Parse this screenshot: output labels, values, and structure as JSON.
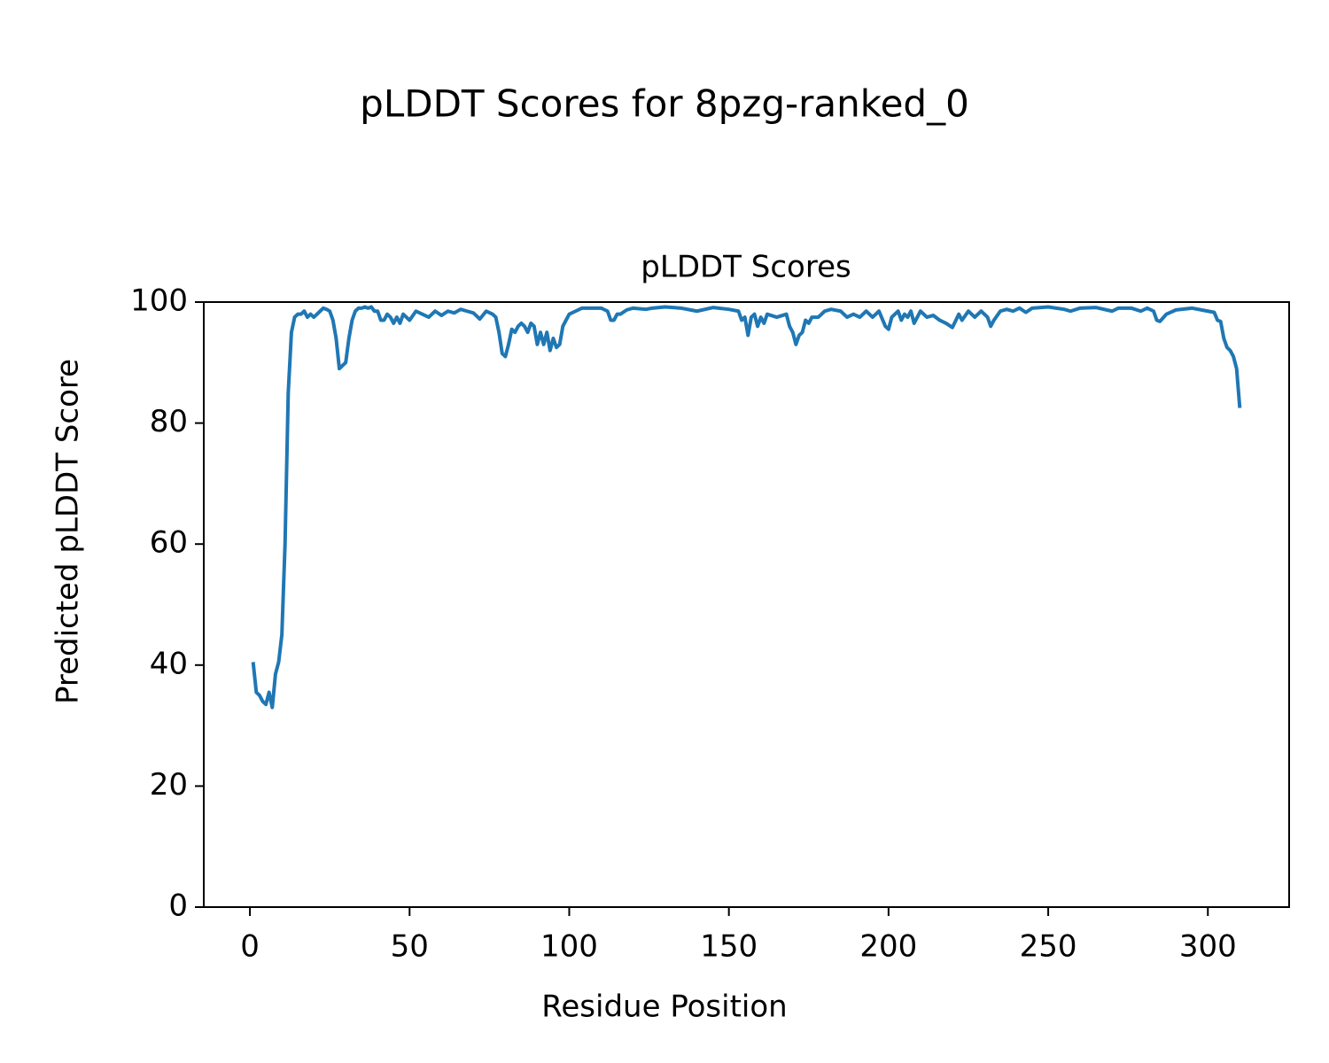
{
  "chart_data": {
    "type": "line",
    "suptitle": "pLDDT Scores for 8pzg-ranked_0",
    "title": "pLDDT Scores",
    "x_label": "Residue Position",
    "y_label": "Predicted pLDDT Score",
    "xlim": [
      -14.45,
      325.45
    ],
    "xticks": [
      0,
      50,
      100,
      150,
      200,
      250,
      300
    ],
    "ylim": [
      0,
      100
    ],
    "yticks": [
      0,
      20,
      40,
      60,
      80,
      100
    ],
    "grid": false,
    "x": [
      1,
      2,
      3,
      4,
      5,
      6,
      7,
      8,
      9,
      10,
      11,
      12,
      13,
      14,
      15,
      16,
      17,
      18,
      19,
      20,
      21,
      22,
      23,
      24,
      25,
      26,
      27,
      28,
      29,
      30,
      31,
      32,
      33,
      34,
      35,
      36,
      37,
      38,
      39,
      40,
      41,
      42,
      43,
      44,
      45,
      46,
      47,
      48,
      49,
      50,
      52,
      54,
      56,
      58,
      60,
      62,
      64,
      66,
      68,
      70,
      72,
      74,
      76,
      77,
      78,
      79,
      80,
      81,
      82,
      83,
      84,
      85,
      86,
      87,
      88,
      89,
      90,
      91,
      92,
      93,
      94,
      95,
      96,
      97,
      98,
      99,
      100,
      102,
      104,
      106,
      108,
      110,
      112,
      113,
      114,
      115,
      116,
      118,
      120,
      124,
      126,
      130,
      135,
      140,
      145,
      150,
      153,
      154,
      155,
      156,
      157,
      158,
      159,
      160,
      161,
      162,
      165,
      168,
      169,
      170,
      171,
      172,
      173,
      174,
      175,
      176,
      178,
      180,
      182,
      185,
      187,
      189,
      191,
      193,
      195,
      197,
      199,
      200,
      201,
      203,
      204,
      205,
      206,
      207,
      208,
      210,
      212,
      214,
      216,
      218,
      220,
      222,
      223,
      225,
      227,
      229,
      231,
      232,
      233,
      235,
      237,
      239,
      241,
      243,
      245,
      250,
      255,
      257,
      260,
      265,
      270,
      272,
      276,
      279,
      281,
      283,
      284,
      285,
      287,
      290,
      295,
      300,
      302,
      303,
      304,
      305,
      306,
      307,
      308,
      309,
      310
    ],
    "series": [
      {
        "name": "pLDDT",
        "color": "#1f77b4",
        "values": [
          40.5,
          35.5,
          35,
          34,
          33.5,
          35.5,
          33,
          38.5,
          40.5,
          45,
          60,
          85,
          95,
          97.5,
          98,
          98,
          98.5,
          97.5,
          98,
          97.5,
          98,
          98.5,
          99,
          98.8,
          98.5,
          97,
          94,
          89,
          89.5,
          90,
          94,
          97,
          98.5,
          99,
          99,
          99.2,
          99,
          99.2,
          98.5,
          98.5,
          97,
          97,
          98,
          97.5,
          96.5,
          97.5,
          96.5,
          98,
          97.5,
          97,
          98.5,
          98,
          97.5,
          98.5,
          97.8,
          98.5,
          98.2,
          98.8,
          98.5,
          98.2,
          97.2,
          98.5,
          98,
          97.5,
          95,
          91.5,
          91,
          93,
          95.5,
          95,
          96,
          96.5,
          96,
          95,
          96.5,
          96,
          93,
          95,
          93,
          95,
          92,
          94,
          92.5,
          93,
          96,
          97,
          98,
          98.5,
          99,
          99,
          99,
          99,
          98.5,
          97,
          97,
          98,
          98,
          98.7,
          99,
          98.8,
          99,
          99.2,
          99,
          98.5,
          99.1,
          98.8,
          98.5,
          97,
          97.5,
          94.5,
          97.5,
          98,
          96,
          97.5,
          96.5,
          98,
          97.5,
          98,
          96,
          95,
          93,
          94.5,
          95,
          97,
          96.5,
          97.5,
          97.5,
          98.5,
          98.8,
          98.5,
          97.5,
          98,
          97.5,
          98.5,
          97.5,
          98.5,
          96,
          95.5,
          97.5,
          98.5,
          97,
          98,
          97.5,
          98.5,
          96.5,
          98.5,
          97.5,
          97.8,
          97,
          96.5,
          95.8,
          98,
          97,
          98.5,
          97.5,
          98.5,
          97.5,
          96,
          97,
          98.5,
          98.8,
          98.5,
          99,
          98.3,
          99,
          99.2,
          98.8,
          98.5,
          99,
          99.1,
          98.5,
          99,
          99,
          98.5,
          99,
          98.5,
          97,
          96.8,
          98,
          98.7,
          99,
          98.5,
          98.3,
          97,
          96.8,
          94,
          92.5,
          92,
          91,
          89,
          82.5
        ]
      }
    ]
  }
}
